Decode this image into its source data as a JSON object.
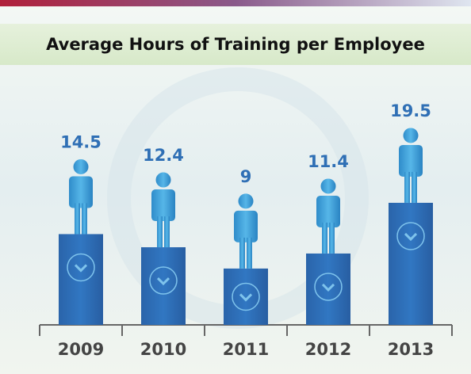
{
  "chart_data": {
    "type": "bar",
    "title": "Average Hours of Training per Employee",
    "categories": [
      "2009",
      "2010",
      "2011",
      "2012",
      "2013"
    ],
    "values": [
      14.5,
      12.4,
      9,
      11.4,
      19.5
    ],
    "color": "#2b6cb3"
  }
}
